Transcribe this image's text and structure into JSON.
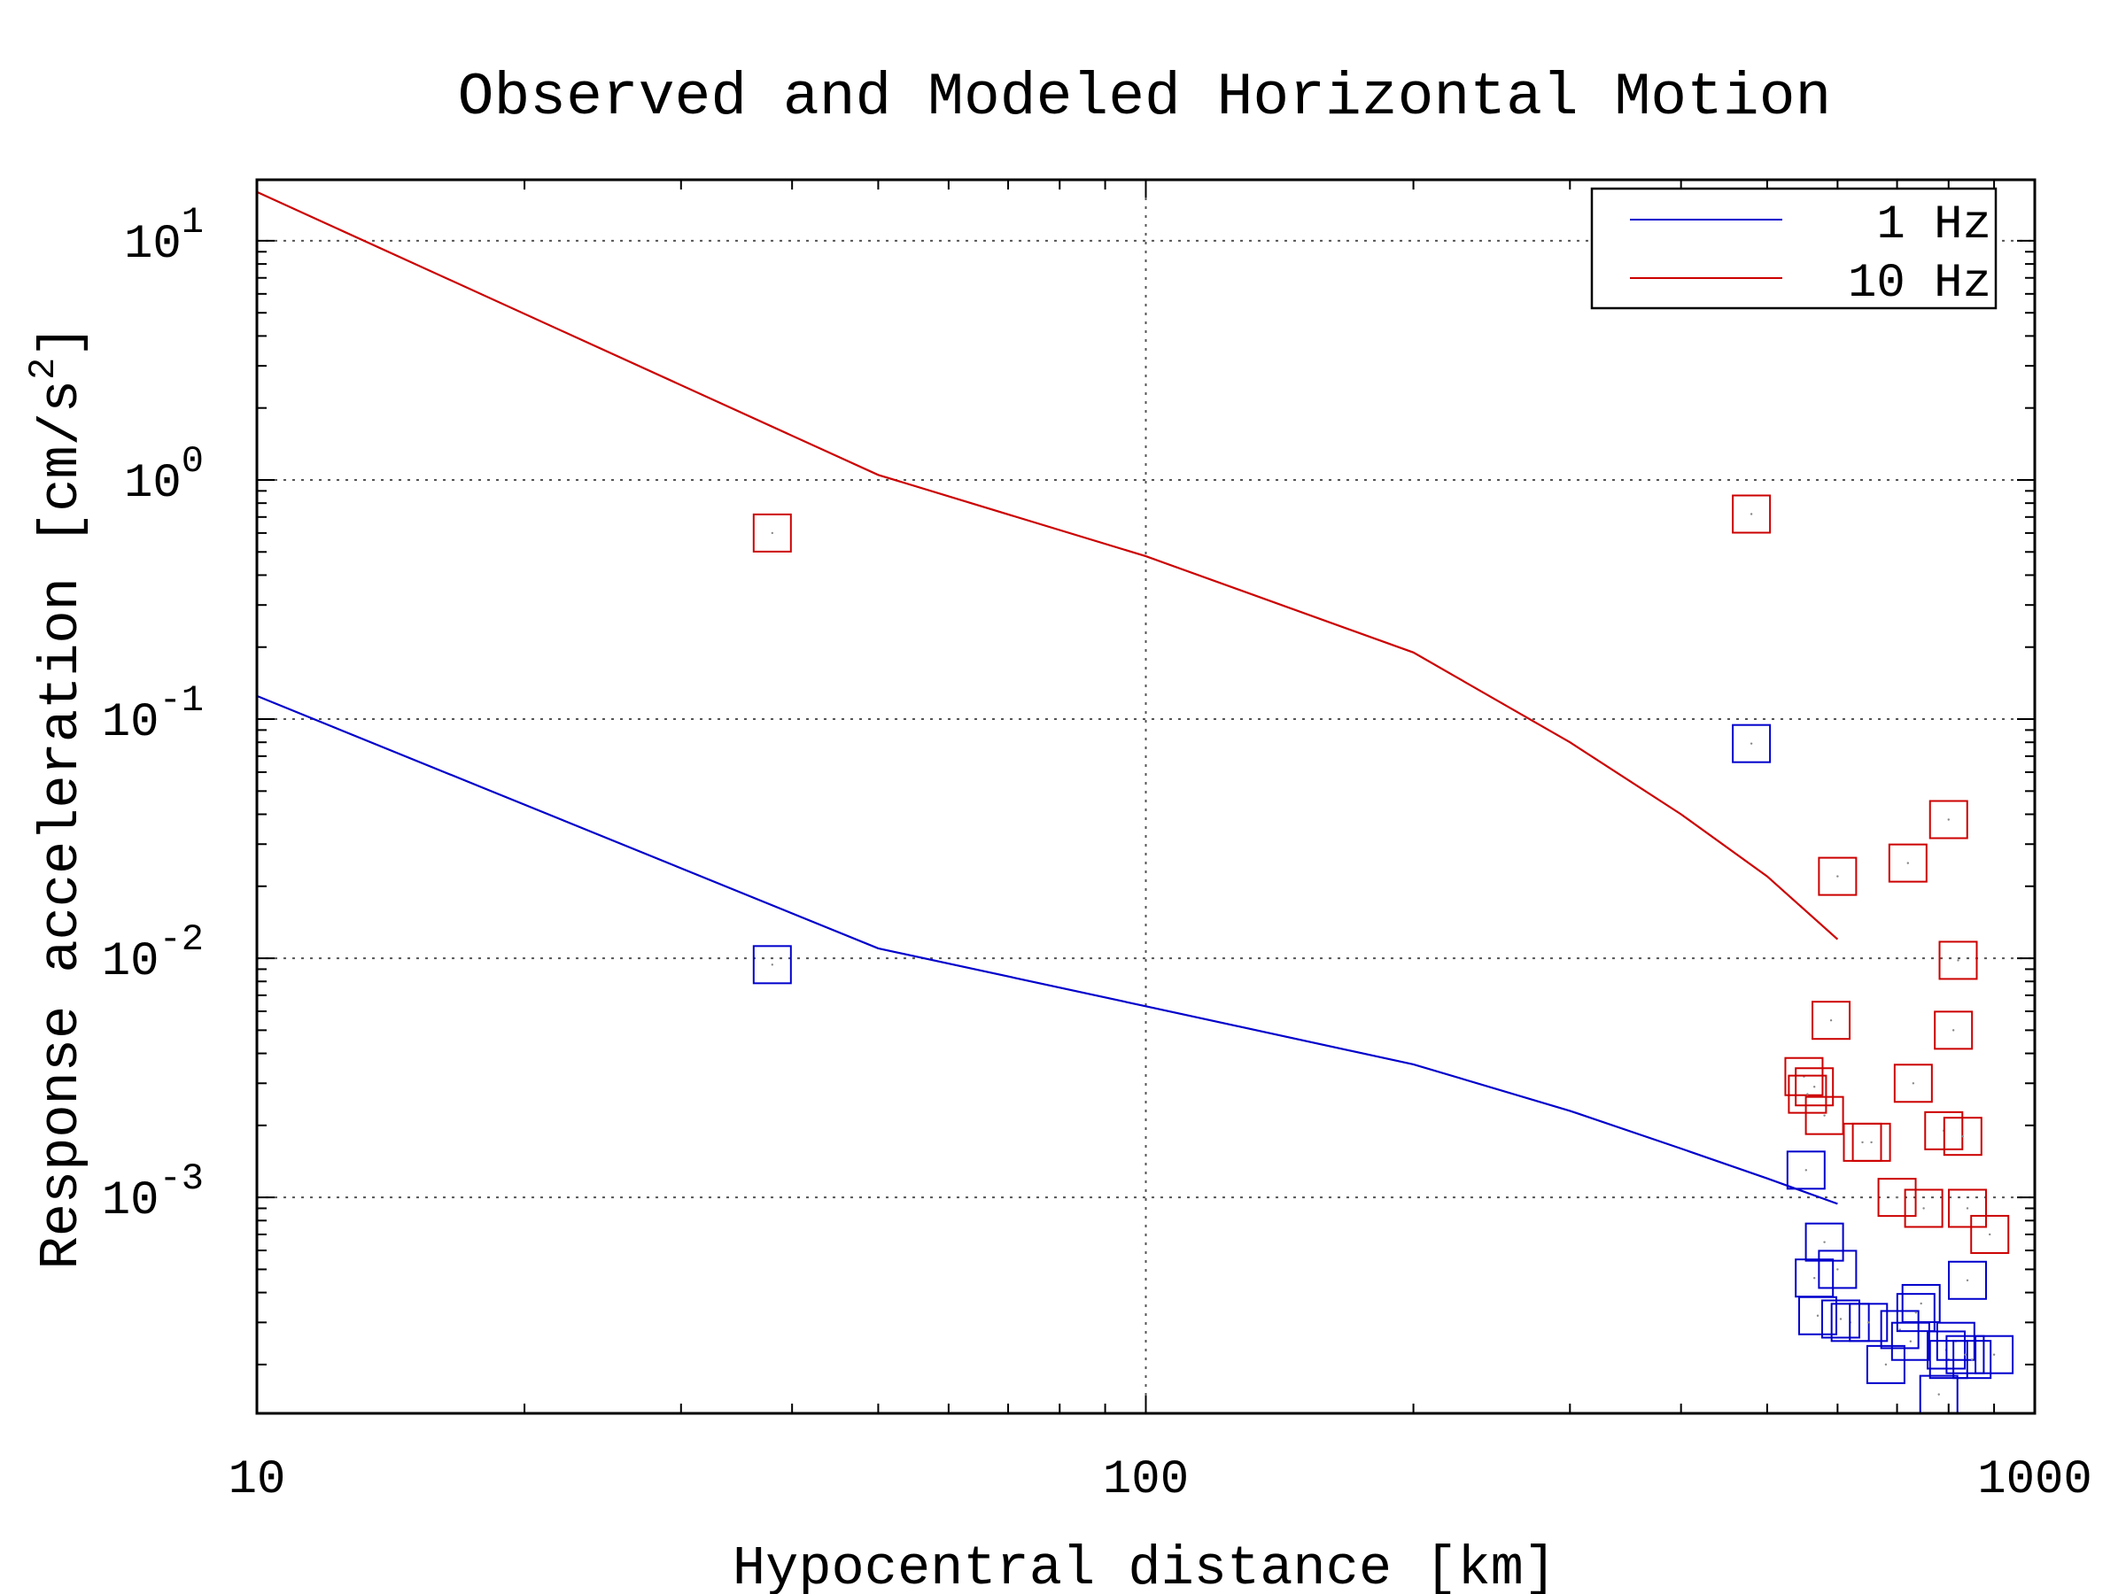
{
  "chart_data": {
    "type": "scatter",
    "title": "Observed and Modeled Horizontal Motion",
    "xlabel": "Hypocentral distance [km]",
    "ylabel_main": "Response acceleration [cm/s",
    "ylabel_sup": "2",
    "ylabel_end": "]",
    "xscale": "log",
    "yscale": "log",
    "xlim": [
      10,
      1000
    ],
    "ylim": [
      0.000125,
      18
    ],
    "x_ticks": [
      {
        "value": 10,
        "label": "10"
      },
      {
        "value": 100,
        "label": "100"
      },
      {
        "value": 1000,
        "label": "1000"
      }
    ],
    "y_ticks": [
      {
        "value": 0.001,
        "base": "10",
        "exp": "-3"
      },
      {
        "value": 0.01,
        "base": "10",
        "exp": "-2"
      },
      {
        "value": 0.1,
        "base": "10",
        "exp": "-1"
      },
      {
        "value": 1,
        "base": "10",
        "exp": "0"
      },
      {
        "value": 10,
        "base": "10",
        "exp": "1"
      }
    ],
    "grid": true,
    "legend_position": "top-right",
    "series": [
      {
        "name": "1 Hz",
        "color": "#0000cc",
        "line": {
          "x": [
            10,
            50,
            100,
            200,
            300,
            400,
            500,
            600
          ],
          "y": [
            0.125,
            0.011,
            0.0063,
            0.0036,
            0.0023,
            0.0016,
            0.0012,
            0.00094
          ]
        },
        "observed": {
          "x": [
            38,
            480,
            553,
            565,
            570,
            580,
            600,
            605,
            620,
            650,
            680,
            705,
            725,
            735,
            745,
            780,
            795,
            800,
            815,
            835,
            840,
            850,
            900
          ],
          "y": [
            0.0094,
            0.079,
            0.0013,
            0.00046,
            0.00032,
            0.00065,
            0.0005,
            0.00031,
            0.0003,
            0.0003,
            0.0002,
            0.00028,
            0.00025,
            0.00033,
            0.00036,
            0.00015,
            0.00023,
            0.00021,
            0.00025,
            0.00022,
            0.00045,
            0.00021,
            0.00022
          ]
        }
      },
      {
        "name": "10 Hz",
        "color": "#cc0000",
        "line": {
          "x": [
            10,
            50,
            100,
            200,
            300,
            400,
            500,
            600
          ],
          "y": [
            16,
            1.05,
            0.48,
            0.19,
            0.08,
            0.04,
            0.022,
            0.012
          ]
        },
        "observed": {
          "x": [
            38,
            480,
            550,
            555,
            565,
            580,
            590,
            600,
            640,
            655,
            700,
            720,
            730,
            750,
            790,
            800,
            810,
            820,
            830,
            840,
            890
          ],
          "y": [
            0.6,
            0.72,
            0.0032,
            0.0027,
            0.0029,
            0.0022,
            0.0055,
            0.022,
            0.0017,
            0.0017,
            0.001,
            0.025,
            0.003,
            0.0009,
            0.0019,
            0.038,
            0.005,
            0.0098,
            0.0018,
            0.0009,
            0.0007
          ]
        }
      }
    ]
  }
}
